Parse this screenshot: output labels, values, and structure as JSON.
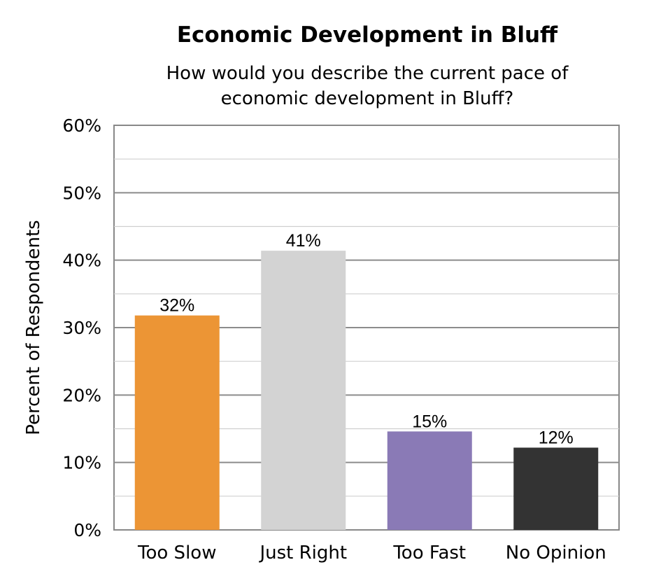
{
  "chart_data": {
    "type": "bar",
    "title": "Economic Development in Bluff",
    "subtitle_lines": [
      "How would you describe the current pace of",
      "economic development in Bluff?"
    ],
    "ylabel": "Percent of Respondents",
    "xlabel": "",
    "ylim": [
      0,
      60
    ],
    "yticks": [
      0,
      10,
      20,
      30,
      40,
      50,
      60
    ],
    "ytick_labels": [
      "0%",
      "10%",
      "20%",
      "30%",
      "40%",
      "50%",
      "60%"
    ],
    "grid": true,
    "categories": [
      "Too Slow",
      "Just Right",
      "Too Fast",
      "No Opinion"
    ],
    "values": [
      31.8,
      41.4,
      14.6,
      12.2
    ],
    "data_labels": [
      "32%",
      "41%",
      "15%",
      "12%"
    ],
    "colors": [
      "#EC9535",
      "#D3D3D3",
      "#8A7AB6",
      "#333333"
    ]
  }
}
